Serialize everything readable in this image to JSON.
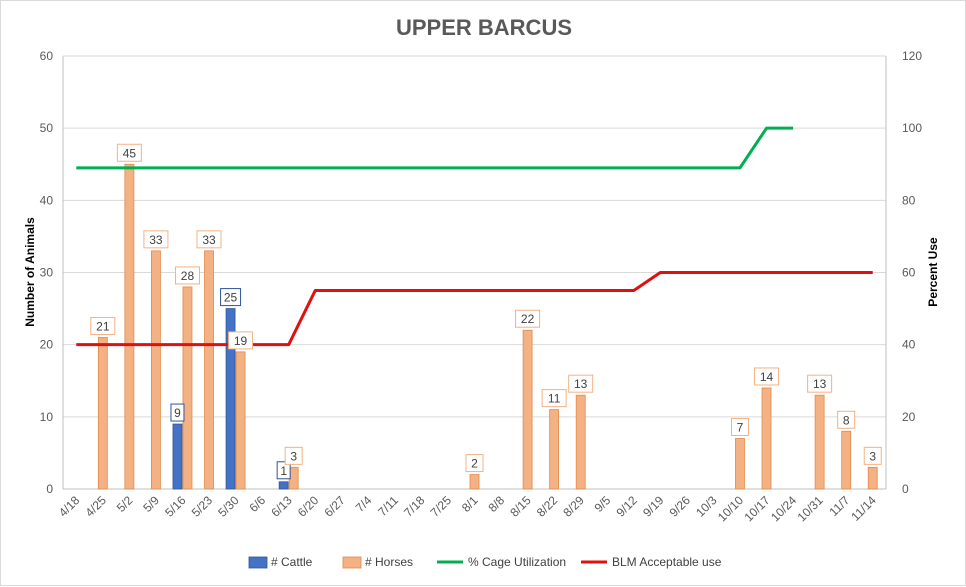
{
  "chart_data": {
    "type": "bar",
    "title": "UPPER BARCUS",
    "ylabel": "Number of Animals",
    "y2label": "Percent Use",
    "ylim": [
      0,
      60
    ],
    "y2lim": [
      0,
      120
    ],
    "yticks": [
      0,
      10,
      20,
      30,
      40,
      50,
      60
    ],
    "y2ticks": [
      0,
      20,
      40,
      60,
      80,
      100,
      120
    ],
    "categories": [
      "4/18",
      "4/25",
      "5/2",
      "5/9",
      "5/16",
      "5/23",
      "5/30",
      "6/6",
      "6/13",
      "6/20",
      "6/27",
      "7/4",
      "7/11",
      "7/18",
      "7/25",
      "8/1",
      "8/8",
      "8/15",
      "8/22",
      "8/29",
      "9/5",
      "9/12",
      "9/19",
      "9/26",
      "10/3",
      "10/10",
      "10/17",
      "10/24",
      "10/31",
      "11/7",
      "11/14"
    ],
    "grid": true,
    "legend_position": "bottom",
    "series": [
      {
        "name": "# Cattle",
        "type": "bar",
        "axis": "left",
        "color": "#4472c4",
        "values": [
          null,
          null,
          null,
          null,
          9,
          null,
          25,
          null,
          1,
          null,
          null,
          null,
          null,
          null,
          null,
          null,
          null,
          null,
          null,
          null,
          null,
          null,
          null,
          null,
          null,
          null,
          null,
          null,
          null,
          null,
          null
        ]
      },
      {
        "name": "# Horses",
        "type": "bar",
        "axis": "left",
        "color": "#f4b183",
        "values": [
          null,
          21,
          45,
          33,
          28,
          33,
          19,
          null,
          3,
          null,
          null,
          null,
          null,
          null,
          null,
          2,
          null,
          22,
          11,
          13,
          null,
          null,
          null,
          null,
          null,
          7,
          14,
          null,
          13,
          8,
          3
        ]
      },
      {
        "name": "% Cage Utilization",
        "type": "line",
        "axis": "right",
        "color": "#00b050",
        "values": [
          89,
          89,
          89,
          89,
          89,
          89,
          89,
          89,
          89,
          89,
          89,
          89,
          89,
          89,
          89,
          89,
          89,
          89,
          89,
          89,
          89,
          89,
          89,
          89,
          89,
          89,
          100,
          100,
          null,
          null,
          null
        ]
      },
      {
        "name": "BLM Acceptable use",
        "type": "line",
        "axis": "right",
        "color": "#e01010",
        "values": [
          40,
          40,
          40,
          40,
          40,
          40,
          40,
          40,
          40,
          55,
          55,
          55,
          55,
          55,
          55,
          55,
          55,
          55,
          55,
          55,
          55,
          55,
          60,
          60,
          60,
          60,
          60,
          60,
          60,
          60,
          60
        ]
      }
    ]
  }
}
